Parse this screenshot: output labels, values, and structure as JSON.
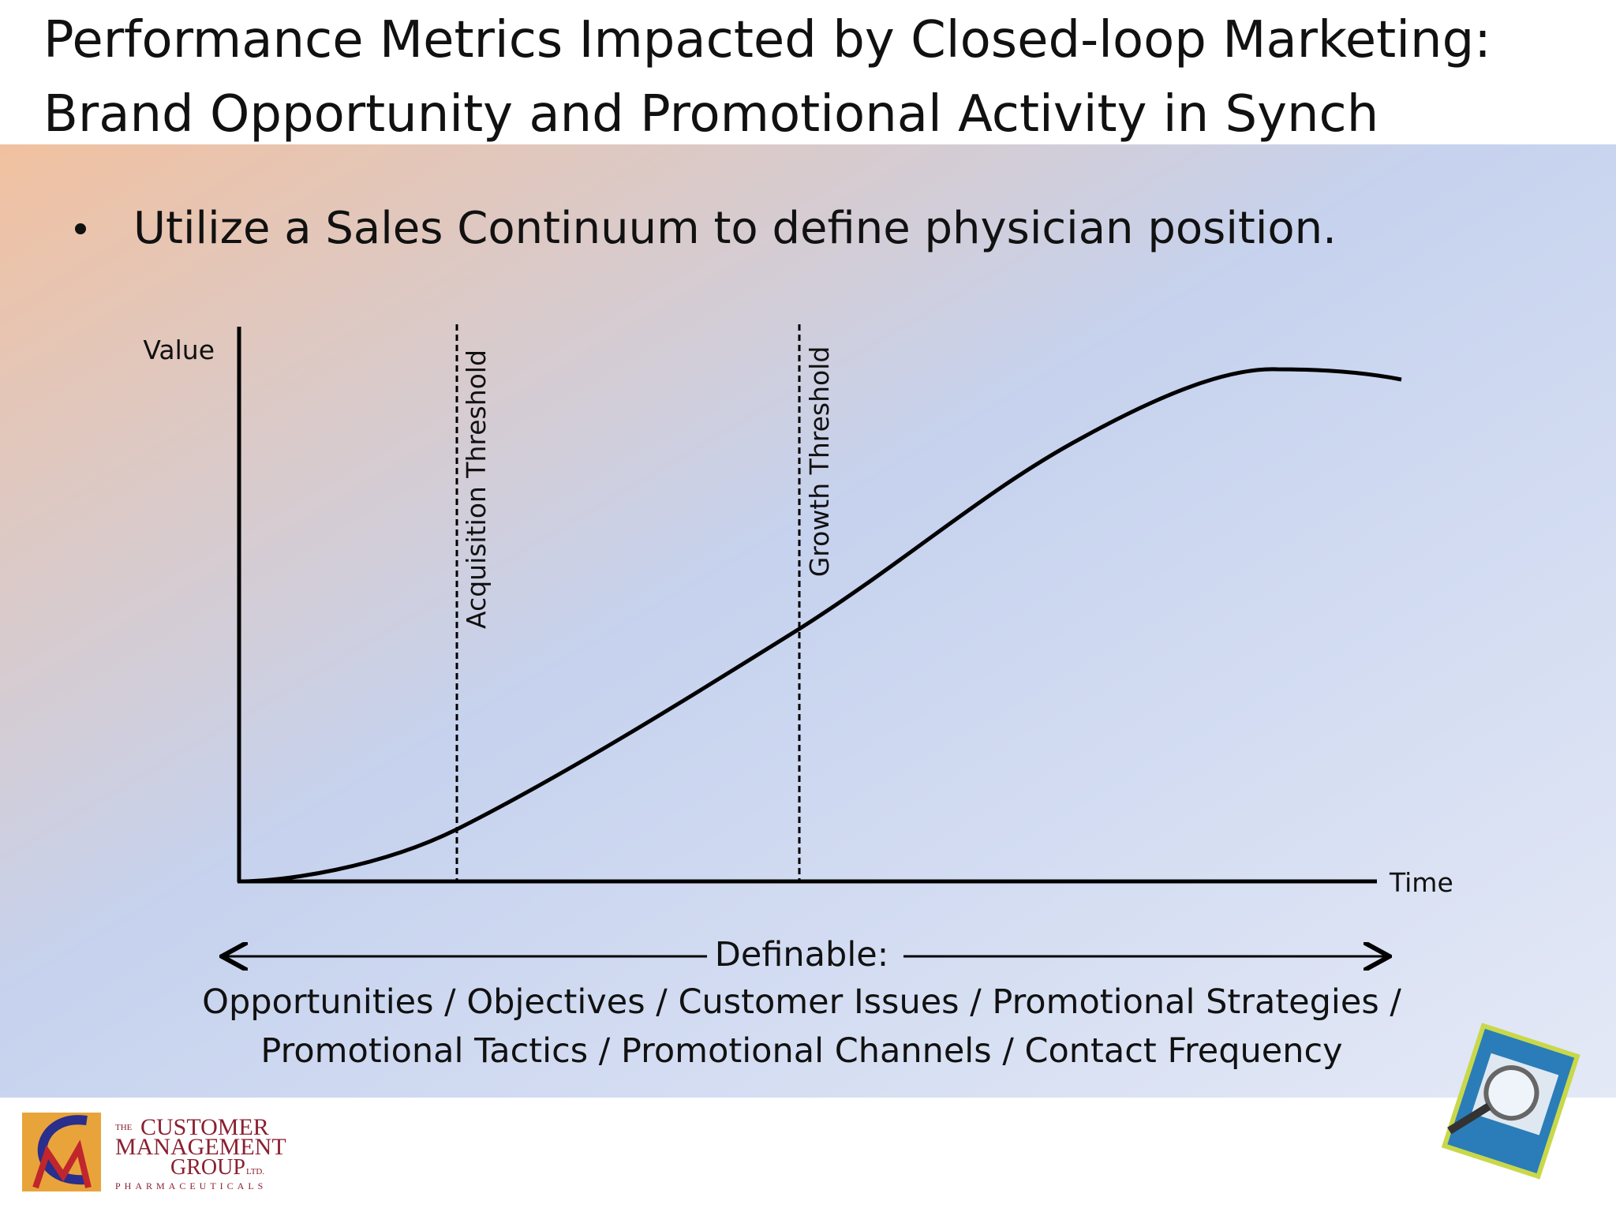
{
  "header": {
    "title_lines": [
      "Performance Metrics Impacted by Closed-loop Marketing:",
      "Brand Opportunity and Promotional Activity in Synch"
    ]
  },
  "bullet": "Utilize a Sales Continuum to define physician position.",
  "diagram": {
    "y_axis_label": "Value",
    "x_axis_label": "Time",
    "thresholds": [
      "Acquisition Threshold",
      "Growth Threshold"
    ],
    "span_label": "Definable:",
    "definables": [
      "Opportunities / Objectives / Customer Issues / Promotional Strategies /",
      "Promotional Tactics / Promotional Channels / Contact Frequency"
    ]
  },
  "footer": {
    "logo": {
      "prefix": "THE",
      "lines": [
        "CUSTOMER",
        "MANAGEMENT",
        "GROUP"
      ],
      "suffix": "LTD.",
      "tagline": "PHARMACEUTICALS"
    }
  }
}
